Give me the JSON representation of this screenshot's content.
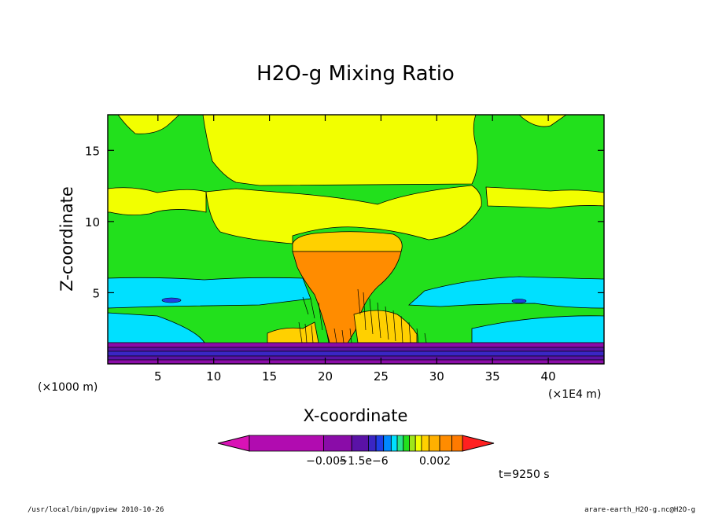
{
  "chart_data": {
    "type": "heatmap",
    "title": "H2O-g Mixing Ratio",
    "xlabel": "X-coordinate",
    "ylabel": "Z-coordinate",
    "x_scale_note": "(×1E4 m)",
    "y_scale_note": "(×1000 m)",
    "x_ticks": [
      "5",
      "10",
      "15",
      "20",
      "25",
      "30",
      "35",
      "40"
    ],
    "x_tick_values": [
      5,
      10,
      15,
      20,
      25,
      30,
      35,
      40
    ],
    "y_ticks": [
      "5",
      "10",
      "15"
    ],
    "y_tick_values": [
      5,
      10,
      15
    ],
    "xlim": [
      0.5,
      45
    ],
    "ylim": [
      0,
      17.5
    ],
    "colorbar": {
      "labels": [
        "−0.005",
        "−1.5e−6",
        "0.002"
      ],
      "colors": [
        "#d912b6",
        "#b10cb0",
        "#8a0ca8",
        "#5a12a6",
        "#3a26c4",
        "#1f3fe6",
        "#0088ff",
        "#00e0ff",
        "#29e58a",
        "#22e01c",
        "#9fe61a",
        "#f2ff00",
        "#ffd000",
        "#ffb000",
        "#ff8c00",
        "#ff7a00",
        "#ff2020"
      ]
    },
    "grid": false,
    "legend": "colorbar-bottom"
  },
  "time_label": "t=9250 s",
  "footer_left": "/usr/local/bin/gpview  2010-10-26",
  "footer_right": "arare-earth_H2O-g.nc@H2O-g"
}
